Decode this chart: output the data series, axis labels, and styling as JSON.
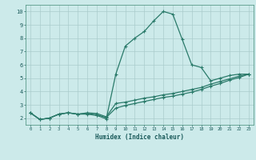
{
  "title": "",
  "xlabel": "Humidex (Indice chaleur)",
  "ylabel": "",
  "background_color": "#cceaea",
  "grid_color": "#aacccc",
  "line_color": "#2a7a6a",
  "xlim": [
    -0.5,
    23.5
  ],
  "ylim": [
    1.5,
    10.5
  ],
  "xticks": [
    0,
    1,
    2,
    3,
    4,
    5,
    6,
    7,
    8,
    9,
    10,
    11,
    12,
    13,
    14,
    15,
    16,
    17,
    18,
    19,
    20,
    21,
    22,
    23
  ],
  "yticks": [
    2,
    3,
    4,
    5,
    6,
    7,
    8,
    9,
    10
  ],
  "series1_x": [
    0,
    1,
    2,
    3,
    4,
    5,
    6,
    7,
    8,
    9,
    10,
    11,
    12,
    13,
    14,
    15,
    16,
    17,
    18,
    19,
    20,
    21,
    22,
    23
  ],
  "series1_y": [
    2.4,
    1.9,
    2.0,
    2.3,
    2.4,
    2.3,
    2.3,
    2.2,
    1.95,
    5.3,
    7.4,
    8.0,
    8.5,
    9.3,
    10.0,
    9.8,
    7.9,
    6.0,
    5.8,
    4.8,
    5.0,
    5.2,
    5.3,
    5.3
  ],
  "series2_x": [
    0,
    1,
    2,
    3,
    4,
    5,
    6,
    7,
    8,
    9,
    10,
    11,
    12,
    13,
    14,
    15,
    16,
    17,
    18,
    19,
    20,
    21,
    22,
    23
  ],
  "series2_y": [
    2.4,
    1.9,
    2.0,
    2.3,
    2.4,
    2.3,
    2.4,
    2.35,
    2.1,
    3.1,
    3.2,
    3.35,
    3.5,
    3.6,
    3.75,
    3.85,
    4.0,
    4.15,
    4.3,
    4.55,
    4.75,
    4.95,
    5.15,
    5.3
  ],
  "series3_x": [
    0,
    1,
    2,
    3,
    4,
    5,
    6,
    7,
    8,
    9,
    10,
    11,
    12,
    13,
    14,
    15,
    16,
    17,
    18,
    19,
    20,
    21,
    22,
    23
  ],
  "series3_y": [
    2.4,
    1.9,
    2.0,
    2.3,
    2.4,
    2.3,
    2.35,
    2.25,
    2.05,
    2.75,
    2.95,
    3.1,
    3.25,
    3.4,
    3.55,
    3.65,
    3.8,
    3.95,
    4.15,
    4.4,
    4.6,
    4.85,
    5.05,
    5.3
  ]
}
